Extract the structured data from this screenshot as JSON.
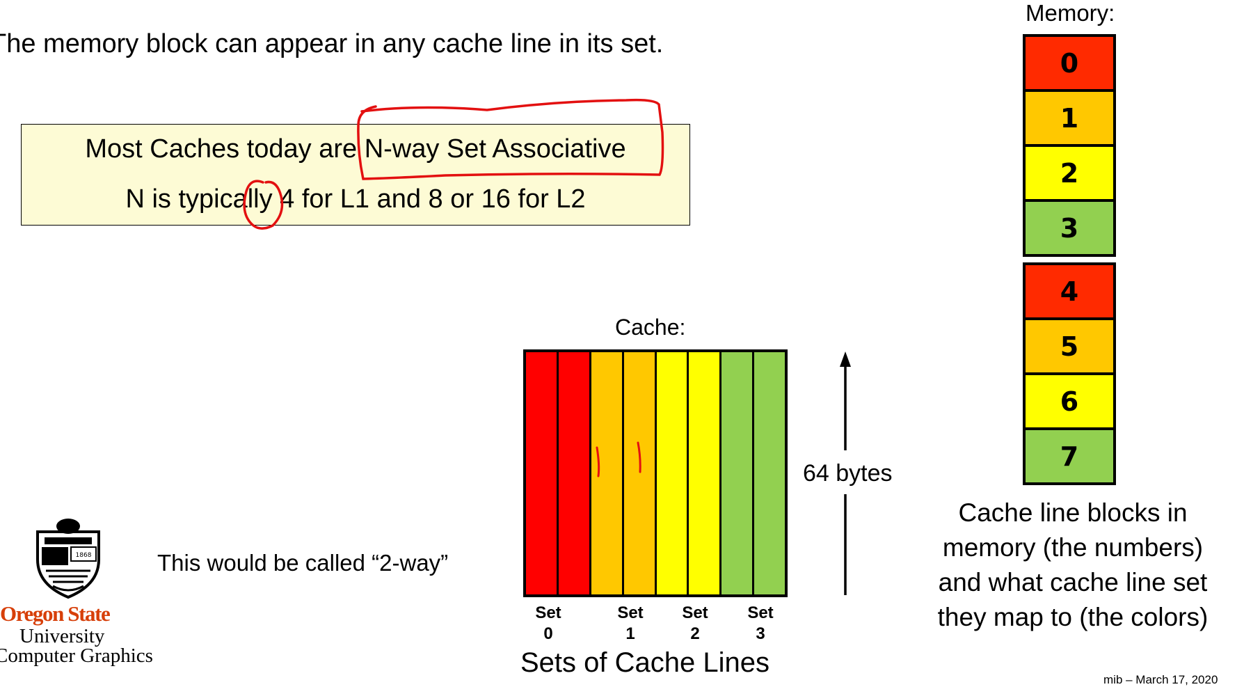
{
  "intro": "The memory block can appear in any cache line in its set.",
  "callout": {
    "line1": "Most Caches today are N-way Set Associative",
    "line2": "N is typically 4 for L1 and 8 or 16 for L2"
  },
  "memory": {
    "title": "Memory:",
    "blocks": [
      {
        "label": "0",
        "color": "#ff2a00"
      },
      {
        "label": "1",
        "color": "#ffc800"
      },
      {
        "label": "2",
        "color": "#ffff00"
      },
      {
        "label": "3",
        "color": "#92d050"
      },
      {
        "label": "4",
        "color": "#ff2a00"
      },
      {
        "label": "5",
        "color": "#ffc800"
      },
      {
        "label": "6",
        "color": "#ffff00"
      },
      {
        "label": "7",
        "color": "#92d050"
      }
    ],
    "caption": [
      "Cache line blocks in",
      "memory (the numbers)",
      "and what cache line set",
      "they map to (the colors)"
    ]
  },
  "cache": {
    "title": "Cache:",
    "line_colors": [
      "#ff0000",
      "#ff0000",
      "#ffc800",
      "#ffc800",
      "#ffff00",
      "#ffff00",
      "#92d050",
      "#92d050"
    ],
    "sets": [
      {
        "word": "Set",
        "num": "0"
      },
      {
        "word": "Set",
        "num": "1"
      },
      {
        "word": "Set",
        "num": "2"
      },
      {
        "word": "Set",
        "num": "3"
      }
    ],
    "sets_caption": "Sets of Cache Lines",
    "line_size": "64 bytes"
  },
  "called": "This would be called “2-way”",
  "logo": {
    "name": "Oregon State",
    "university": "University",
    "department": "Computer Graphics",
    "seal_year": "1868"
  },
  "footer": "mib – March 17, 2020",
  "colors": {
    "annotation": "#e31010",
    "osu_orange": "#d73f09",
    "callout_bg": "#fdfbd5"
  }
}
